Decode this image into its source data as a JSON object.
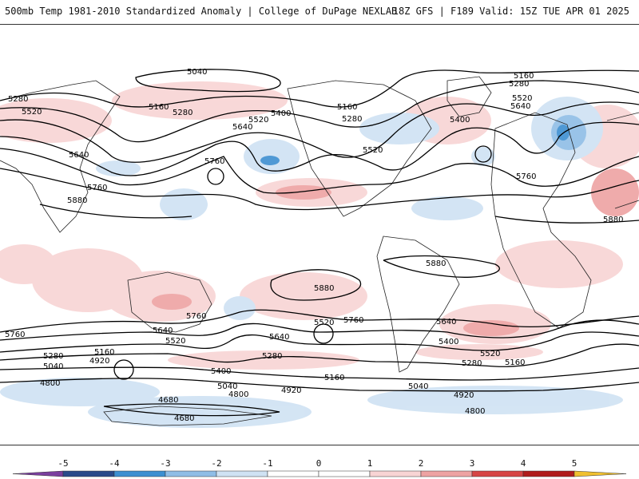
{
  "header": {
    "title_left": "500mb Temp 1981-2010 Standardized Anomaly | College of DuPage NEXLAB",
    "title_right": "18Z GFS | F189 Valid: 15Z TUE APR 01 2025"
  },
  "map": {
    "product": "500mb Temp 1981-2010 Standardized Anomaly",
    "contour_labels": [
      "5040",
      "5280",
      "5520",
      "5160",
      "5280",
      "5640",
      "5520",
      "5400",
      "5160",
      "5280",
      "5520",
      "5400",
      "5160",
      "5280",
      "5520",
      "5640",
      "5760",
      "5640",
      "5760",
      "5880",
      "5760",
      "5880",
      "5880",
      "5880",
      "5760",
      "5640",
      "5520",
      "5760",
      "5640",
      "5400",
      "5520",
      "5640",
      "5760",
      "5280",
      "5160",
      "4920",
      "5040",
      "5400",
      "5280",
      "5160",
      "5040",
      "4800",
      "4920",
      "5520",
      "5280",
      "5160",
      "4920",
      "4800",
      "4800",
      "4680",
      "4680",
      "5040"
    ],
    "colors": {
      "neg_5": "#7a3f9e",
      "neg_4": "#2a4a8a",
      "neg_3": "#3d8fd1",
      "neg_2": "#8fbde6",
      "neg_1": "#cfe2f3",
      "zero": "#ffffff",
      "pos_1": "#f8d4d4",
      "pos_2": "#eea2a2",
      "pos_3": "#d64545",
      "pos_4": "#b01c1c",
      "pos_5": "#7a0f0f",
      "pos_over": "#f0c030"
    }
  },
  "colorbar": {
    "ticks": [
      "-5",
      "-4",
      "-3",
      "-2",
      "-1",
      "0",
      "1",
      "2",
      "3",
      "4",
      "5"
    ],
    "segment_colors": [
      "#7a3f9e",
      "#2a4a8a",
      "#3d8fd1",
      "#8fbde6",
      "#cfe2f3",
      "#ffffff",
      "#ffffff",
      "#f8d4d4",
      "#eea2a2",
      "#d64545",
      "#b01c1c",
      "#7a0f0f",
      "#f0c030"
    ]
  }
}
